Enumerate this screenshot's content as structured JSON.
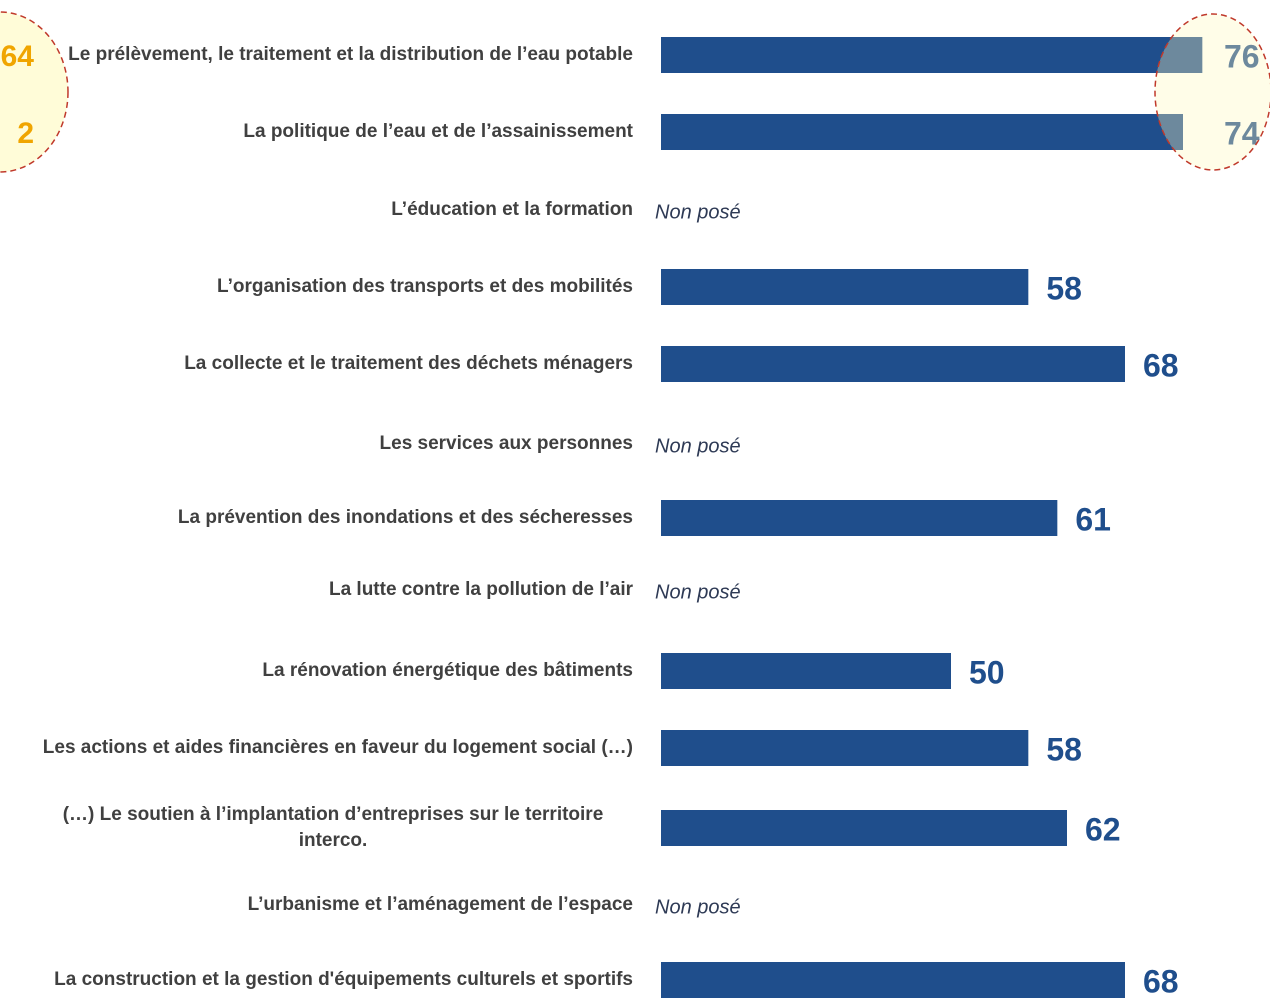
{
  "chart_data": {
    "type": "bar",
    "orientation": "horizontal",
    "categories": [
      "Le prélèvement, le traitement et la distribution de l’eau potable",
      "La politique de l’eau et de l’assainissement",
      "L’éducation et la formation",
      "L’organisation des transports et des mobilités",
      "La collecte et le traitement des déchets ménagers",
      "Les services aux personnes",
      "La prévention des inondations et des sécheresses",
      "La lutte contre la pollution de l’air",
      "La rénovation énergétique des bâtiments",
      "Les actions et aides financières en faveur du logement social (…)",
      "(…) Le soutien à l’implantation d’entreprises sur le territoire interco.",
      "L’urbanisme et l’aménagement de l’espace",
      "La construction et la gestion d'équipements culturels et sportifs"
    ],
    "values": [
      76,
      74,
      null,
      58,
      68,
      null,
      61,
      null,
      50,
      58,
      62,
      null,
      68
    ],
    "value_labels": [
      "76",
      "74",
      "Non posé",
      "58",
      "68",
      "Non posé",
      "61",
      "Non posé",
      "50",
      "58",
      "62",
      "Non posé",
      "68"
    ],
    "color": "#1f4e8c",
    "xlim": [
      20,
      83
    ],
    "annotations": [
      "64",
      "2"
    ]
  }
}
